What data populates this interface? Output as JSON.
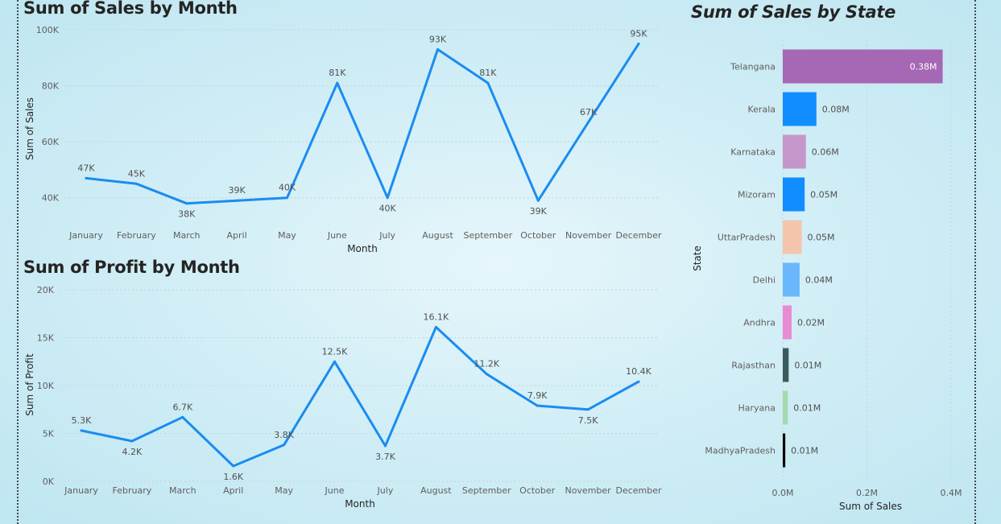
{
  "colors": {
    "line": "#1a8cf0",
    "grid": "#c4d3d9",
    "tick_text": "#605e5c",
    "axis_title": "#252423",
    "data_label": "#505050"
  },
  "chart_data": [
    {
      "type": "line",
      "title": "Sum of Sales by Month",
      "xlabel": "Month",
      "ylabel": "Sum of Sales",
      "categories": [
        "January",
        "February",
        "March",
        "April",
        "May",
        "June",
        "July",
        "August",
        "September",
        "October",
        "November",
        "December"
      ],
      "values": [
        47000,
        45000,
        38000,
        39000,
        40000,
        81000,
        40000,
        93000,
        81000,
        39000,
        67000,
        95000
      ],
      "data_labels": [
        "47K",
        "45K",
        "38K",
        "39K",
        "40K",
        "81K",
        "40K",
        "93K",
        "81K",
        "39K",
        "67K",
        "95K"
      ],
      "y_ticks": [
        {
          "v": 40000,
          "label": "40K"
        },
        {
          "v": 60000,
          "label": "60K"
        },
        {
          "v": 80000,
          "label": "80K"
        },
        {
          "v": 100000,
          "label": "100K"
        }
      ],
      "ylim": [
        29000,
        100000
      ],
      "grid": true
    },
    {
      "type": "line",
      "title": "Sum of Profit by Month",
      "xlabel": "Month",
      "ylabel": "Sum of Profit",
      "categories": [
        "January",
        "February",
        "March",
        "April",
        "May",
        "June",
        "July",
        "August",
        "September",
        "October",
        "November",
        "December"
      ],
      "values": [
        5300,
        4200,
        6700,
        1600,
        3800,
        12500,
        3700,
        16100,
        11200,
        7900,
        7500,
        10400
      ],
      "data_labels": [
        "5.3K",
        "4.2K",
        "6.7K",
        "1.6K",
        "3.8K",
        "12.5K",
        "3.7K",
        "16.1K",
        "11.2K",
        "7.9K",
        "7.5K",
        "10.4K"
      ],
      "y_ticks": [
        {
          "v": 0,
          "label": "0K"
        },
        {
          "v": 5000,
          "label": "5K"
        },
        {
          "v": 10000,
          "label": "10K"
        },
        {
          "v": 15000,
          "label": "15K"
        },
        {
          "v": 20000,
          "label": "20K"
        }
      ],
      "ylim": [
        0,
        20000
      ],
      "grid": true
    },
    {
      "type": "bar",
      "orientation": "horizontal",
      "title": "Sum of Sales by State",
      "xlabel": "Sum of Sales",
      "ylabel": "State",
      "categories": [
        "Telangana",
        "Kerala",
        "Karnataka",
        "Mizoram",
        "UttarPradesh",
        "Delhi",
        "Andhra",
        "Rajasthan",
        "Haryana",
        "MadhyaPradesh"
      ],
      "values": [
        380000,
        80000,
        55000,
        52000,
        45000,
        40000,
        21000,
        14000,
        12000,
        6000
      ],
      "data_labels": [
        "0.38M",
        "0.08M",
        "0.06M",
        "0.05M",
        "0.05M",
        "0.04M",
        "0.02M",
        "0.01M",
        "0.01M",
        "0.01M"
      ],
      "bar_colors": [
        "#a667b4",
        "#118dff",
        "#c496c9",
        "#118dff",
        "#f5c4ad",
        "#6ab7fb",
        "#e98ad4",
        "#3a5a5c",
        "#a3dbad",
        "#000000"
      ],
      "x_ticks": [
        {
          "v": 0,
          "label": "0.0M"
        },
        {
          "v": 200000,
          "label": "0.2M"
        },
        {
          "v": 400000,
          "label": "0.4M"
        }
      ],
      "xlim": [
        0,
        400000
      ],
      "grid": true
    }
  ]
}
